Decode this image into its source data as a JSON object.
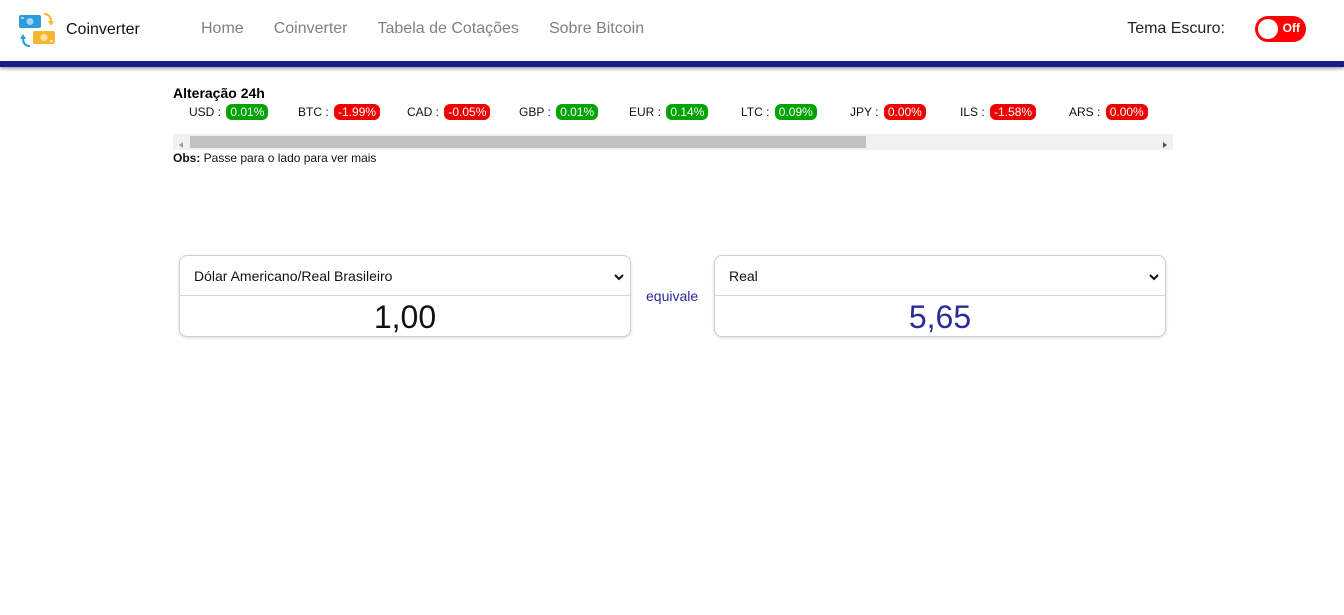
{
  "nav": {
    "brand": "Coinverter",
    "links": [
      "Home",
      "Coinverter",
      "Tabela de Cotações",
      "Sobre Bitcoin"
    ],
    "theme_label": "Tema Escuro:",
    "toggle_text": "Off",
    "toggle_color": "#ff0000",
    "accent_line_color": "#1a1a8c"
  },
  "changes": {
    "title": "Alteração 24h",
    "items": [
      {
        "code": "USD :",
        "value": "0.01%",
        "trend": "up"
      },
      {
        "code": "BTC :",
        "value": "-1.99%",
        "trend": "down"
      },
      {
        "code": "CAD :",
        "value": "-0.05%",
        "trend": "down"
      },
      {
        "code": "GBP :",
        "value": "0.01%",
        "trend": "up"
      },
      {
        "code": "EUR :",
        "value": "0.14%",
        "trend": "up"
      },
      {
        "code": "LTC :",
        "value": "0.09%",
        "trend": "up"
      },
      {
        "code": "JPY :",
        "value": "0.00%",
        "trend": "down"
      },
      {
        "code": "ILS :",
        "value": "-1.58%",
        "trend": "down"
      },
      {
        "code": "ARS :",
        "value": "0.00%",
        "trend": "down"
      }
    ],
    "note_label": "Obs:",
    "note_text": " Passe para o lado para ver mais",
    "up_color": "#00a400",
    "down_color": "#ee0000"
  },
  "converter": {
    "from_select": "Dólar Americano/Real Brasileiro",
    "from_amount": "1,00",
    "equivale": "equivale",
    "to_select": "Real",
    "to_amount": "5,65",
    "result_color": "#2a2a9a"
  }
}
